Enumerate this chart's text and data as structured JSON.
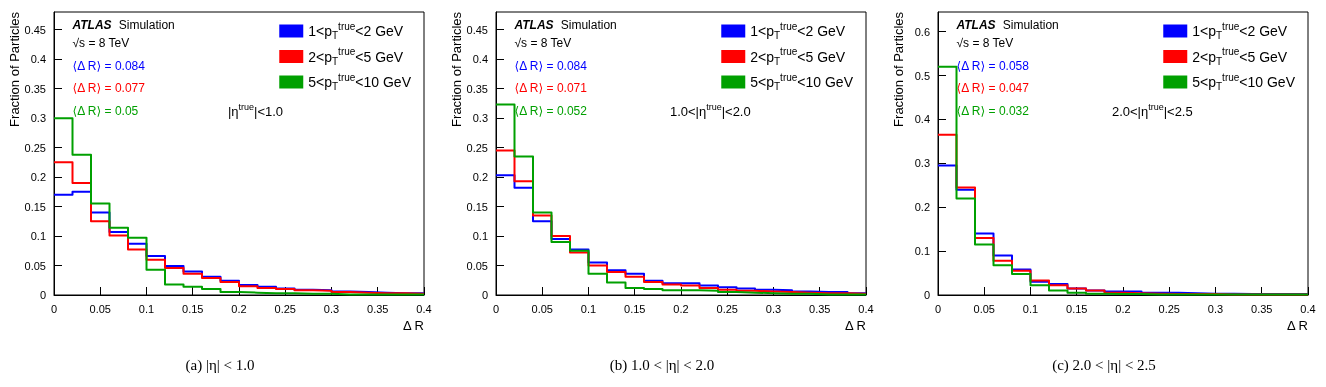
{
  "chart_data": [
    {
      "type": "histogram",
      "xlabel": "Δ R",
      "ylabel": "Fraction of Particles",
      "legend": "top right",
      "xlim": [
        0,
        0.4
      ],
      "ylim": [
        0,
        0.48
      ],
      "xticks": [
        0,
        0.05,
        0.1,
        0.15,
        0.2,
        0.25,
        0.3,
        0.35,
        0.4
      ],
      "yticks": [
        0,
        0.05,
        0.1,
        0.15,
        0.2,
        0.25,
        0.3,
        0.35,
        0.4,
        0.45
      ],
      "annotations": [
        "ATLAS",
        "Simulation",
        "√s = 8 TeV",
        "⟨Δ R⟩ = 0.084",
        "⟨Δ R⟩ = 0.077",
        "⟨Δ R⟩ = 0.05",
        "|η$^{true}$|<1.0",
        "(a) |η| < 1.0"
      ],
      "bins": [
        0,
        0.02,
        0.04,
        0.06,
        0.08,
        0.1,
        0.12,
        0.14,
        0.16,
        0.18,
        0.2,
        0.22,
        0.24,
        0.26,
        0.28,
        0.3,
        0.32,
        0.34,
        0.36,
        0.38,
        0.4
      ],
      "series": [
        {
          "name": "1<p$_{T}$$^{true}$<2 GeV",
          "color": "#0000ff",
          "values": [
            0.17,
            0.175,
            0.14,
            0.107,
            0.087,
            0.066,
            0.049,
            0.04,
            0.031,
            0.024,
            0.017,
            0.014,
            0.011,
            0.009,
            0.008,
            0.006,
            0.005,
            0.004,
            0.003,
            0.003
          ]
        },
        {
          "name": "2<p$_{T}$$^{true}$<5 GeV",
          "color": "#ff0000",
          "values": [
            0.225,
            0.19,
            0.125,
            0.101,
            0.077,
            0.06,
            0.046,
            0.036,
            0.029,
            0.022,
            0.015,
            0.012,
            0.01,
            0.008,
            0.007,
            0.005,
            0.004,
            0.003,
            0.003,
            0.002
          ]
        },
        {
          "name": "5<p$_{T}$$^{true}$<10 GeV",
          "color": "#00a000",
          "values": [
            0.3,
            0.238,
            0.155,
            0.114,
            0.097,
            0.043,
            0.018,
            0.014,
            0.01,
            0.005,
            0.004,
            0.003,
            0.003,
            0.002,
            0.002,
            0.001,
            0.001,
            0.001,
            0.001,
            0.001
          ]
        }
      ]
    },
    {
      "type": "histogram",
      "xlabel": "Δ R",
      "ylabel": "Fraction of Particles",
      "legend": "top right",
      "xlim": [
        0,
        0.4
      ],
      "ylim": [
        0,
        0.48
      ],
      "xticks": [
        0,
        0.05,
        0.1,
        0.15,
        0.2,
        0.25,
        0.3,
        0.35,
        0.4
      ],
      "yticks": [
        0,
        0.05,
        0.1,
        0.15,
        0.2,
        0.25,
        0.3,
        0.35,
        0.4,
        0.45
      ],
      "annotations": [
        "ATLAS",
        "Simulation",
        "√s = 8 TeV",
        "⟨Δ R⟩ = 0.084",
        "⟨Δ R⟩ = 0.071",
        "⟨Δ R⟩ = 0.052",
        "1.0<|η$^{true}$|<2.0",
        "(b) 1.0 < |η| < 2.0"
      ],
      "bins": [
        0,
        0.02,
        0.04,
        0.06,
        0.08,
        0.1,
        0.12,
        0.14,
        0.16,
        0.18,
        0.2,
        0.22,
        0.24,
        0.26,
        0.28,
        0.3,
        0.32,
        0.34,
        0.36,
        0.38,
        0.4
      ],
      "series": [
        {
          "name": "1<p$_{T}$$^{true}$<2 GeV",
          "color": "#0000ff",
          "values": [
            0.203,
            0.182,
            0.125,
            0.095,
            0.077,
            0.055,
            0.042,
            0.036,
            0.024,
            0.02,
            0.02,
            0.016,
            0.013,
            0.011,
            0.009,
            0.008,
            0.006,
            0.005,
            0.005,
            0.003
          ]
        },
        {
          "name": "2<p$_{T}$$^{true}$<5 GeV",
          "color": "#ff0000",
          "values": [
            0.245,
            0.193,
            0.135,
            0.1,
            0.072,
            0.05,
            0.039,
            0.031,
            0.022,
            0.018,
            0.016,
            0.012,
            0.009,
            0.007,
            0.006,
            0.005,
            0.004,
            0.003,
            0.003,
            0.002
          ]
        },
        {
          "name": "5<p$_{T}$$^{true}$<10 GeV",
          "color": "#00a000",
          "values": [
            0.323,
            0.235,
            0.14,
            0.09,
            0.075,
            0.036,
            0.021,
            0.012,
            0.01,
            0.008,
            0.008,
            0.007,
            0.005,
            0.004,
            0.003,
            0.002,
            0.002,
            0.001,
            0.001,
            0.001
          ]
        }
      ]
    },
    {
      "type": "histogram",
      "xlabel": "Δ R",
      "ylabel": "Fraction of Particles",
      "legend": "top right",
      "xlim": [
        0,
        0.4
      ],
      "ylim": [
        0,
        0.645
      ],
      "xticks": [
        0,
        0.05,
        0.1,
        0.15,
        0.2,
        0.25,
        0.3,
        0.35,
        0.4
      ],
      "yticks": [
        0,
        0.1,
        0.2,
        0.3,
        0.4,
        0.5,
        0.6
      ],
      "annotations": [
        "ATLAS",
        "Simulation",
        "√s = 8 TeV",
        "⟨Δ R⟩ = 0.058",
        "⟨Δ R⟩ = 0.047",
        "⟨Δ R⟩ = 0.032",
        "2.0<|η$^{true}$|<2.5",
        "(c) 2.0 < |η| < 2.5"
      ],
      "bins": [
        0,
        0.02,
        0.04,
        0.06,
        0.08,
        0.1,
        0.12,
        0.14,
        0.16,
        0.18,
        0.2,
        0.22,
        0.24,
        0.26,
        0.28,
        0.3,
        0.32,
        0.34,
        0.36,
        0.38,
        0.4
      ],
      "series": [
        {
          "name": "1<p$_{T}$$^{true}$<2 GeV",
          "color": "#0000ff",
          "values": [
            0.295,
            0.24,
            0.14,
            0.09,
            0.058,
            0.03,
            0.025,
            0.015,
            0.01,
            0.008,
            0.008,
            0.005,
            0.005,
            0.004,
            0.003,
            0.003,
            0.002,
            0.002,
            0.002,
            0.002
          ]
        },
        {
          "name": "2<p$_{T}$$^{true}$<5 GeV",
          "color": "#ff0000",
          "values": [
            0.365,
            0.245,
            0.13,
            0.078,
            0.055,
            0.033,
            0.022,
            0.015,
            0.01,
            0.005,
            0.004,
            0.003,
            0.002,
            0.002,
            0.002,
            0.001,
            0.001,
            0.001,
            0.001,
            0.001
          ]
        },
        {
          "name": "5<p$_{T}$$^{true}$<10 GeV",
          "color": "#00a000",
          "values": [
            0.52,
            0.22,
            0.115,
            0.068,
            0.048,
            0.022,
            0.01,
            0.005,
            0.003,
            0.002,
            0.002,
            0.001,
            0.001,
            0.001,
            0.001,
            0.001,
            0.001,
            0.001,
            0.001,
            0.001
          ]
        }
      ]
    }
  ]
}
